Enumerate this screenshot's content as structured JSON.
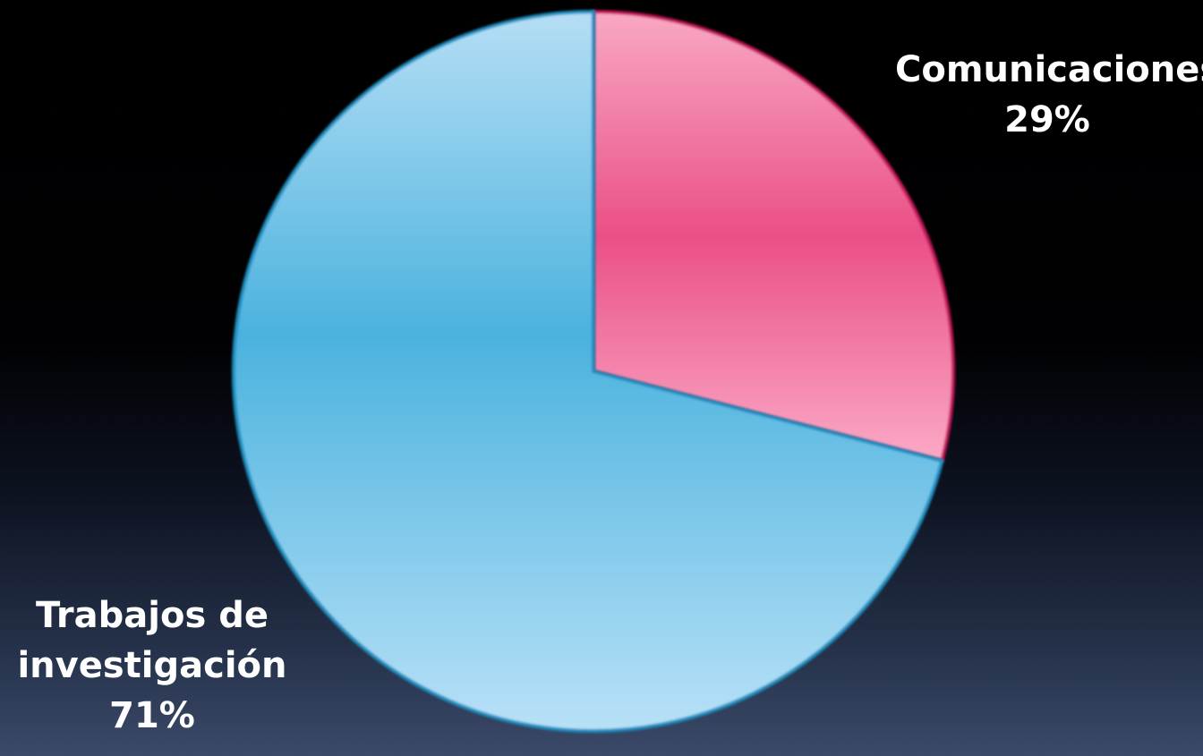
{
  "chart_data": {
    "type": "pie",
    "slices": [
      {
        "name": "Comunicaciones",
        "value": 29,
        "label": "29%",
        "color": "#ea4f86",
        "border_color": "#c0135a"
      },
      {
        "name": "Trabajos de investigación",
        "name_lines": [
          "Trabajos de",
          "investigación"
        ],
        "value": 71,
        "label": "71%",
        "color": "#4bb2de",
        "border_color": "#1f8fc0"
      }
    ],
    "start_angle_deg": 0,
    "direction": "clockwise",
    "legend": "none"
  }
}
